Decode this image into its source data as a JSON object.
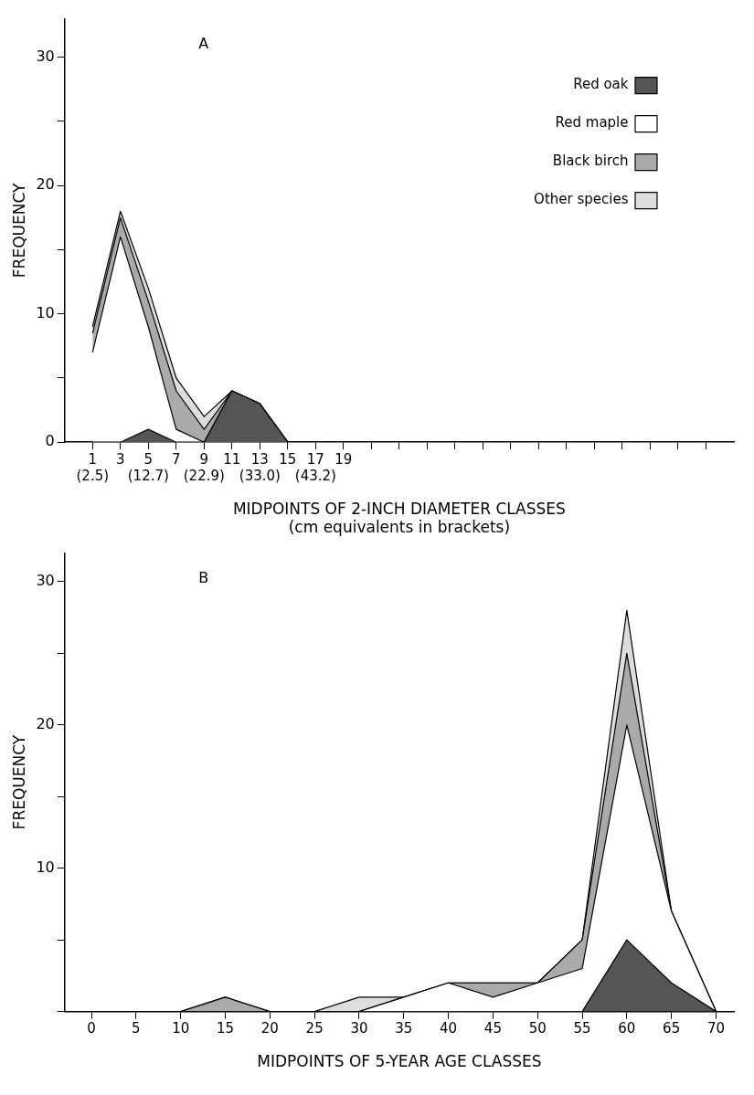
{
  "chart_data": [
    {
      "type": "area",
      "title": "A",
      "stacked": true,
      "xlabel": "MIDPOINTS OF 2-INCH DIAMETER CLASSES",
      "ylabel": "FREQUENCY",
      "annotations": [
        "(cm equivalents in brackets)"
      ],
      "x": [
        1,
        3,
        5,
        7,
        9,
        11,
        13,
        15
      ],
      "series": [
        {
          "name": "Red oak",
          "color": "#555555",
          "values": [
            0,
            0,
            1,
            0,
            0,
            4,
            3,
            0
          ]
        },
        {
          "name": "Red maple",
          "color": "#ffffff",
          "values": [
            7,
            16,
            8,
            1,
            0,
            0,
            0,
            0
          ]
        },
        {
          "name": "Black birch",
          "color": "#aaaaaa",
          "values": [
            1.5,
            1.5,
            2,
            3,
            1,
            0,
            0,
            0
          ]
        },
        {
          "name": "Other species",
          "color": "#dddddd",
          "values": [
            0.5,
            0.5,
            1,
            1,
            1,
            0,
            0,
            0
          ]
        }
      ],
      "xlim": [
        -1,
        47
      ],
      "xticks": [
        {
          "value": 1,
          "label": "1\n(2.5)"
        },
        3,
        {
          "value": 5,
          "label": "5\n(12.7)"
        },
        7,
        {
          "value": 9,
          "label": "9\n(22.9)"
        },
        11,
        {
          "value": 13,
          "label": "13\n(33.0)"
        },
        15,
        {
          "value": 17,
          "label": "17\n(43.2)"
        },
        19,
        {
          "value": 21,
          "label": null
        },
        {
          "value": 23,
          "label": null
        },
        {
          "value": 25,
          "label": null
        },
        {
          "value": 27,
          "label": null
        },
        {
          "value": 29,
          "label": null
        },
        {
          "value": 31,
          "label": null
        },
        {
          "value": 33,
          "label": null
        },
        {
          "value": 35,
          "label": null
        },
        {
          "value": 37,
          "label": null
        },
        {
          "value": 39,
          "label": null
        },
        {
          "value": 41,
          "label": null
        },
        {
          "value": 43,
          "label": null
        },
        {
          "value": 45,
          "label": null
        }
      ],
      "ylim": [
        0,
        33
      ],
      "yticks": [
        0,
        {
          "value": 5,
          "label": null
        },
        10,
        {
          "value": 15,
          "label": null
        },
        20,
        {
          "value": 25,
          "label": null
        },
        30
      ],
      "grid": false,
      "legend": "top right",
      "marker": "none",
      "line_style": "solid"
    },
    {
      "type": "area",
      "title": "B",
      "stacked": true,
      "xlabel": "MIDPOINTS OF 5-YEAR AGE CLASSES",
      "ylabel": "FREQUENCY",
      "x": [
        0,
        5,
        10,
        15,
        20,
        25,
        30,
        35,
        40,
        45,
        50,
        55,
        60,
        65,
        70
      ],
      "series": [
        {
          "color": "#555555",
          "values": [
            0,
            0,
            0,
            0,
            0,
            0,
            0,
            0,
            0,
            0,
            0,
            0,
            5,
            2,
            0
          ]
        },
        {
          "color": "#ffffff",
          "values": [
            0,
            0,
            0,
            0,
            0,
            0,
            0,
            1,
            2,
            1,
            2,
            3,
            15,
            5,
            0
          ]
        },
        {
          "color": "#aaaaaa",
          "values": [
            0,
            0,
            0,
            1,
            0,
            0,
            0,
            0,
            0,
            1,
            0,
            2,
            5,
            0,
            0
          ]
        },
        {
          "color": "#dddddd",
          "values": [
            0,
            0,
            0,
            0,
            0,
            0,
            1,
            0,
            0,
            0,
            0,
            0,
            3,
            0,
            0
          ]
        }
      ],
      "xlim": [
        -3,
        72
      ],
      "xticks": [
        0,
        5,
        10,
        15,
        20,
        25,
        30,
        35,
        40,
        45,
        50,
        55,
        60,
        65,
        70
      ],
      "ylim": [
        0,
        32
      ],
      "yticks": [
        {
          "value": 0,
          "label": null
        },
        {
          "value": 5,
          "label": null
        },
        10,
        {
          "value": 15,
          "label": null
        },
        20,
        {
          "value": 25,
          "label": null
        },
        30
      ],
      "grid": false,
      "legend": false,
      "marker": "none",
      "line_style": "solid"
    }
  ]
}
